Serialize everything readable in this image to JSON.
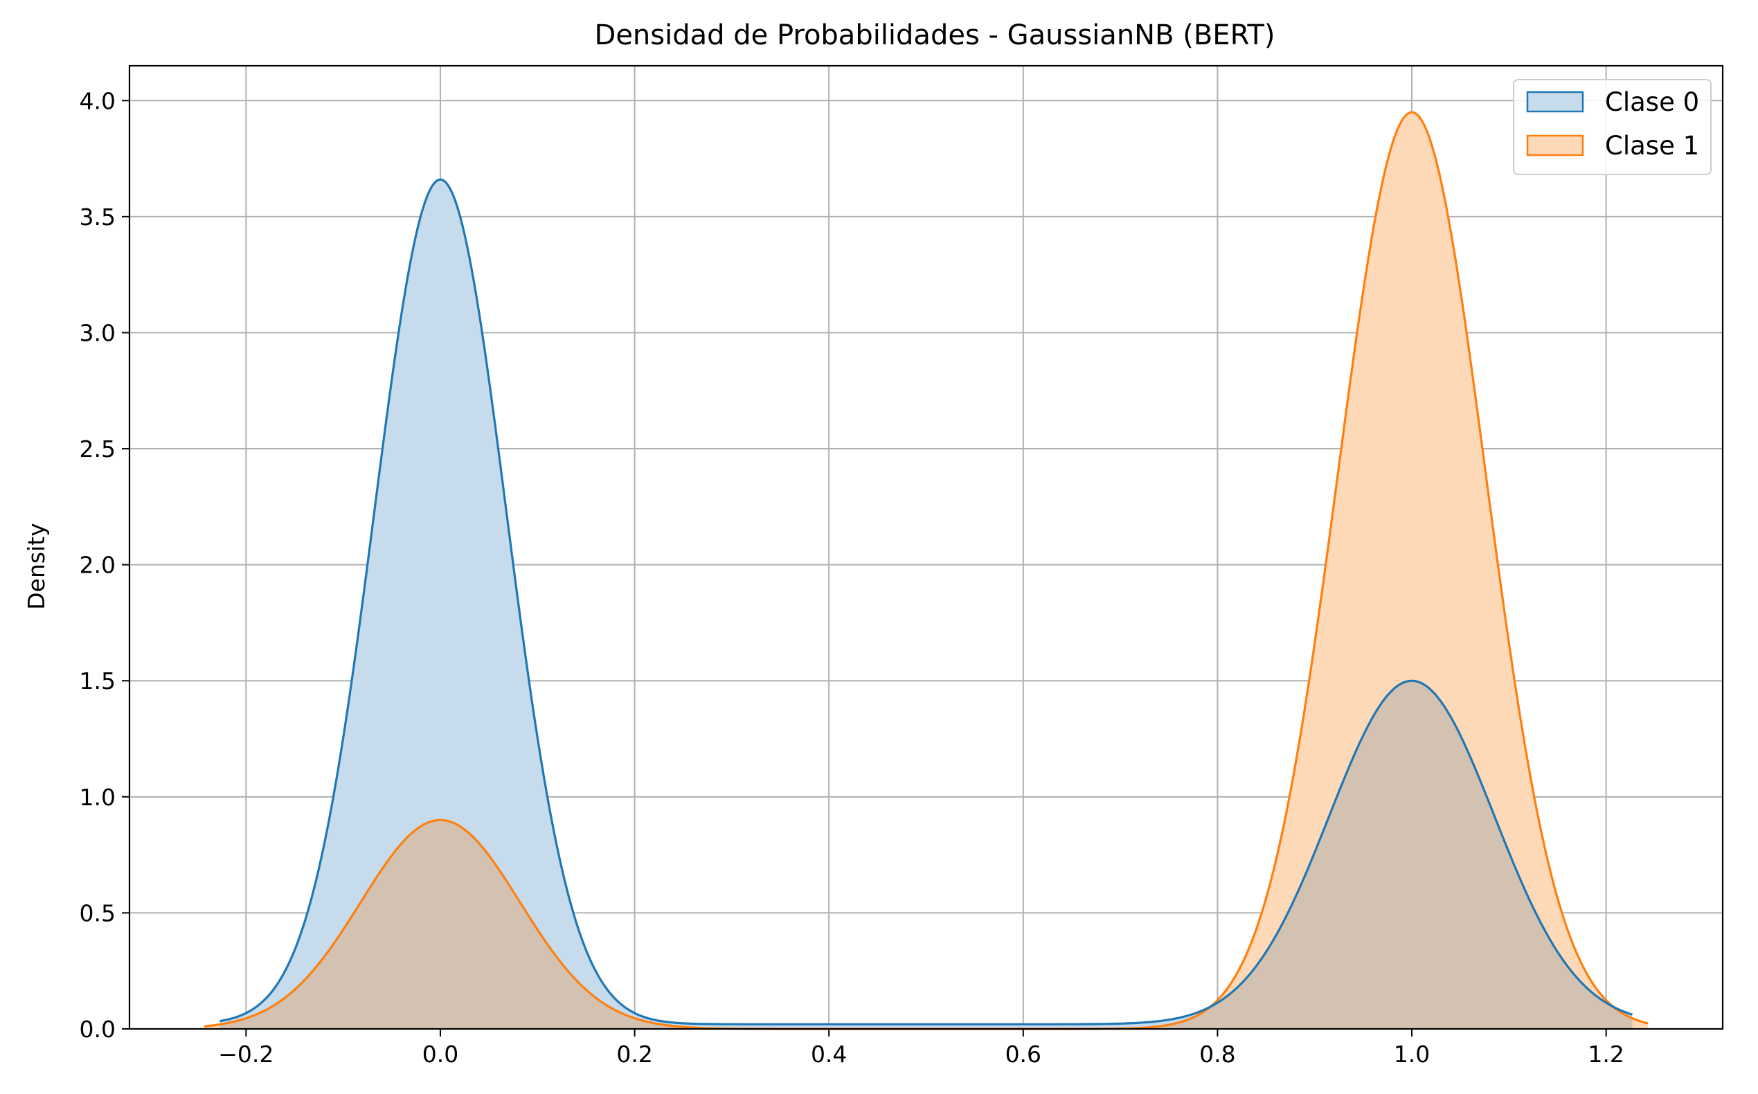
{
  "chart_data": {
    "type": "area",
    "title": "Densidad de Probabilidades - GaussianNB (BERT)",
    "xlabel": "",
    "ylabel": "Density",
    "xlim": [
      -0.32,
      1.32
    ],
    "ylim": [
      0,
      4.15
    ],
    "xticks": [
      -0.2,
      0.0,
      0.2,
      0.4,
      0.6,
      0.8,
      1.0,
      1.2
    ],
    "xtick_labels": [
      "−0.2",
      "0.0",
      "0.2",
      "0.4",
      "0.6",
      "0.8",
      "1.0",
      "1.2"
    ],
    "yticks": [
      0.0,
      0.5,
      1.0,
      1.5,
      2.0,
      2.5,
      3.0,
      3.5,
      4.0
    ],
    "ytick_labels": [
      "0.0",
      "0.5",
      "1.0",
      "1.5",
      "2.0",
      "2.5",
      "3.0",
      "3.5",
      "4.0"
    ],
    "grid": true,
    "legend_position": "top-right",
    "series": [
      {
        "name": "Clase 0",
        "color": "#1f77b4",
        "fill_color": "#c6dbec",
        "x_range": [
          -0.227,
          1.227
        ],
        "components": [
          {
            "mean": 0.0,
            "sd": 0.068,
            "peak": 3.64
          },
          {
            "mean": 1.0,
            "sd": 0.085,
            "peak": 1.48
          }
        ],
        "floor": 0.02
      },
      {
        "name": "Clase 1",
        "color": "#ff7f0e",
        "fill_color": "#fdd9b8",
        "x_range": [
          -0.243,
          1.243
        ],
        "components": [
          {
            "mean": 0.0,
            "sd": 0.082,
            "peak": 0.9
          },
          {
            "mean": 1.0,
            "sd": 0.076,
            "peak": 3.95
          }
        ],
        "floor": 0.0
      }
    ],
    "overlap_fill_color": "#d3c2b2"
  }
}
